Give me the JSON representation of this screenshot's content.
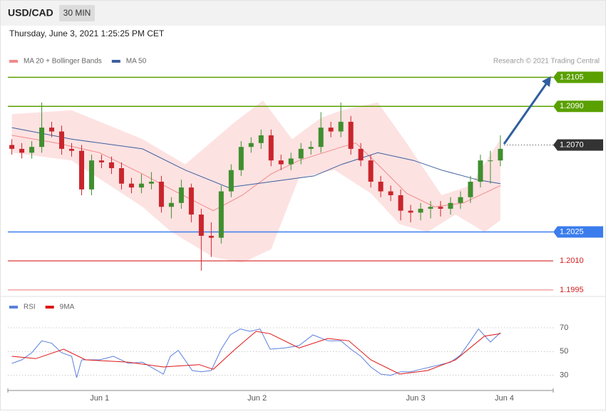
{
  "header": {
    "symbol": "USD/CAD",
    "interval": "30 MIN",
    "timestamp": "Thursday, June 3, 2021 1:25:25 PM CET"
  },
  "chart_data": [
    {
      "type": "candlestick",
      "source": "Research © 2021 Trading Central",
      "xlim": [
        -0.4,
        54.3
      ],
      "ylim": [
        1.1992,
        1.211
      ],
      "candles": {
        "up_color": "#3f8f2f",
        "down_color": "#c9252c",
        "x": [
          0,
          1,
          2,
          3,
          4,
          5,
          6,
          7,
          8,
          9,
          10,
          11,
          12,
          13,
          14,
          15,
          16,
          17,
          18,
          19,
          20,
          21,
          22,
          23,
          24,
          25,
          26,
          27,
          28,
          29,
          30,
          31,
          32,
          33,
          34,
          35,
          36,
          37,
          38,
          39,
          40,
          41,
          42,
          43,
          44,
          45,
          46,
          47,
          48,
          49
        ],
        "open": [
          1.207,
          1.2068,
          1.2066,
          1.2069,
          1.2079,
          1.2077,
          1.2068,
          1.2067,
          1.2047,
          1.2062,
          1.2061,
          1.2058,
          1.205,
          1.2048,
          1.205,
          1.2051,
          1.2038,
          1.204,
          1.2048,
          1.2034,
          1.2023,
          1.2022,
          1.2046,
          1.2057,
          1.2069,
          1.2071,
          1.2075,
          1.2062,
          1.206,
          1.2063,
          1.2068,
          1.2069,
          1.2079,
          1.2077,
          1.2082,
          1.2068,
          1.2062,
          1.2051,
          1.2046,
          1.2044,
          1.2036,
          1.2035,
          1.2037,
          1.2038,
          1.2037,
          1.204,
          1.2043,
          1.2051,
          1.2062,
          1.2062
        ],
        "high": [
          1.2073,
          1.2071,
          1.2072,
          1.2092,
          1.2082,
          1.208,
          1.2071,
          1.207,
          1.2065,
          1.2065,
          1.2064,
          1.2061,
          1.2053,
          1.2055,
          1.2056,
          1.2054,
          1.2043,
          1.2052,
          1.205,
          1.2037,
          1.203,
          1.2049,
          1.206,
          1.2072,
          1.2074,
          1.2078,
          1.2078,
          1.2065,
          1.2066,
          1.2071,
          1.2072,
          1.2087,
          1.2082,
          1.2092,
          1.2085,
          1.2071,
          1.2065,
          1.2054,
          1.2049,
          1.2047,
          1.2039,
          1.204,
          1.2041,
          1.2041,
          1.2043,
          1.2046,
          1.2054,
          1.2065,
          1.2067,
          1.2075
        ],
        "low": [
          1.2065,
          1.2063,
          1.2063,
          1.2066,
          1.2074,
          1.2065,
          1.2064,
          1.2044,
          1.2044,
          1.2058,
          1.2055,
          1.2047,
          1.2045,
          1.2045,
          1.2047,
          1.2035,
          1.2032,
          1.2037,
          1.203,
          1.2005,
          1.2012,
          1.2019,
          1.2043,
          1.2054,
          1.2066,
          1.2068,
          1.2059,
          1.2057,
          1.2057,
          1.206,
          1.2065,
          1.2066,
          1.2074,
          1.2074,
          1.2065,
          1.2059,
          1.2048,
          1.2043,
          1.2041,
          1.2031,
          1.203,
          1.2031,
          1.2032,
          1.2033,
          1.2034,
          1.2037,
          1.204,
          1.2048,
          1.205,
          1.2059
        ],
        "close": [
          1.2068,
          1.2066,
          1.2069,
          1.2079,
          1.2077,
          1.2068,
          1.2067,
          1.2047,
          1.2062,
          1.2061,
          1.2058,
          1.205,
          1.2048,
          1.205,
          1.2051,
          1.2038,
          1.204,
          1.2048,
          1.2034,
          1.2023,
          1.2022,
          1.2046,
          1.2057,
          1.2069,
          1.2071,
          1.2075,
          1.2062,
          1.206,
          1.2063,
          1.2068,
          1.2069,
          1.2079,
          1.2077,
          1.2082,
          1.2068,
          1.2062,
          1.2051,
          1.2046,
          1.2044,
          1.2036,
          1.2035,
          1.2037,
          1.2038,
          1.2037,
          1.204,
          1.2043,
          1.2051,
          1.2062,
          1.2062,
          1.2068
        ]
      },
      "bands": {
        "color": "#fde2e2",
        "upper": {
          "x": [
            0,
            6,
            13.1,
            17.4,
            22.4,
            25.2,
            28.1,
            31,
            33.1,
            36.7,
            39.6,
            43.1,
            46,
            49
          ],
          "values": [
            1.2086,
            1.2088,
            1.2073,
            1.206,
            1.2082,
            1.2093,
            1.2073,
            1.2084,
            1.2088,
            1.2092,
            1.2071,
            1.2044,
            1.2049,
            1.2073
          ]
        },
        "lower": {
          "x": [
            0,
            6,
            13.1,
            16,
            20.2,
            23.1,
            26,
            28.8,
            32.4,
            36,
            38.9,
            41.7,
            44.5,
            47.4,
            49
          ],
          "values": [
            1.2066,
            1.2062,
            1.2038,
            1.2025,
            1.2012,
            1.2009,
            1.2016,
            1.2053,
            1.2057,
            1.2045,
            1.2029,
            1.2025,
            1.2034,
            1.2025,
            1.2031
          ]
        }
      },
      "series": [
        {
          "name": "MA 20 + Bollinger Bands",
          "color": "#f08a8a",
          "x": [
            0,
            4.5,
            8.8,
            13.1,
            16,
            20.2,
            23.1,
            26,
            28.8,
            33.1,
            34.5,
            36.7,
            39.6,
            42.4,
            45.3,
            49
          ],
          "values": [
            1.2075,
            1.2071,
            1.2066,
            1.2055,
            1.2047,
            1.2036,
            1.2044,
            1.2055,
            1.2062,
            1.2069,
            1.2071,
            1.206,
            1.2045,
            1.2038,
            1.204,
            1.2049
          ]
        },
        {
          "name": "MA 50",
          "color": "#3d5f9e",
          "x": [
            0,
            6,
            13.1,
            17.4,
            21.7,
            26,
            30.3,
            33.1,
            36.7,
            40.3,
            43.1,
            46.7,
            49
          ],
          "values": [
            1.2079,
            1.2073,
            1.2068,
            1.2057,
            1.2048,
            1.2051,
            1.2054,
            1.206,
            1.2066,
            1.2062,
            1.2057,
            1.2052,
            1.205
          ]
        }
      ],
      "levels": [
        {
          "value": 1.2105,
          "color": "#5aa000",
          "style": "solid",
          "box": true
        },
        {
          "value": 1.209,
          "label": "1.2090",
          "color": "#5aa000",
          "style": "solid",
          "box": true
        },
        {
          "value": 1.207,
          "label": "1.2070",
          "color": "#333333",
          "style": "dotted",
          "box": true
        },
        {
          "value": 1.2025,
          "color": "#3b7ded",
          "style": "solid",
          "box": true
        },
        {
          "value": 1.201,
          "label": "1.2010",
          "color": "#e05a5a",
          "style": "solid",
          "box": false
        },
        {
          "value": 1.1995,
          "color": "#f3a3a3",
          "style": "solid",
          "box": false
        }
      ]
    },
    {
      "type": "line",
      "xlim": [
        -0.4,
        54.3
      ],
      "ylim": [
        19,
        79
      ],
      "yticks": [
        30,
        50,
        70
      ],
      "grid": true,
      "xticks": [
        {
          "value": 8.8,
          "label": "Jun 1"
        },
        {
          "value": 24.6,
          "label": "Jun 2"
        },
        {
          "value": 40.5,
          "label": "Jun 3"
        },
        {
          "value": 49.4,
          "label": "Jun 4"
        }
      ],
      "series": [
        {
          "name": "RSI",
          "color": "#5b80dc",
          "x": [
            0,
            1,
            2,
            3,
            4,
            5,
            6,
            6.5,
            7,
            8.8,
            10.2,
            11.7,
            13.1,
            15.2,
            15.9,
            16.7,
            18.1,
            19,
            20,
            21,
            21.9,
            22.9,
            23.9,
            24.9,
            25.9,
            27.4,
            28.8,
            30.2,
            31.7,
            33,
            34,
            35,
            36,
            37,
            38,
            39,
            40,
            41,
            42,
            43,
            44,
            45,
            46,
            46.8,
            48,
            49
          ],
          "values": [
            40,
            43,
            49,
            59,
            57,
            49,
            46,
            28,
            43,
            43,
            46,
            40,
            41,
            31,
            46,
            51,
            34,
            33,
            34,
            52,
            64,
            69,
            67,
            69,
            52,
            53,
            55,
            64,
            59,
            59,
            52,
            46,
            37,
            31,
            30,
            33,
            33,
            35,
            37,
            39,
            41,
            47,
            59,
            69,
            58,
            66
          ]
        },
        {
          "name": "9MA",
          "color": "#e01414",
          "x": [
            0,
            2.4,
            5.2,
            7.4,
            11.7,
            15.2,
            18.8,
            20.2,
            22.4,
            24.5,
            25.9,
            28.8,
            31.7,
            33.8,
            36,
            38.9,
            41.7,
            44.5,
            47.4,
            49
          ],
          "values": [
            46,
            44,
            52,
            43,
            41,
            37,
            39,
            35,
            52,
            67,
            65,
            53,
            61,
            59,
            43,
            31,
            34,
            43,
            63,
            65
          ]
        }
      ]
    }
  ]
}
